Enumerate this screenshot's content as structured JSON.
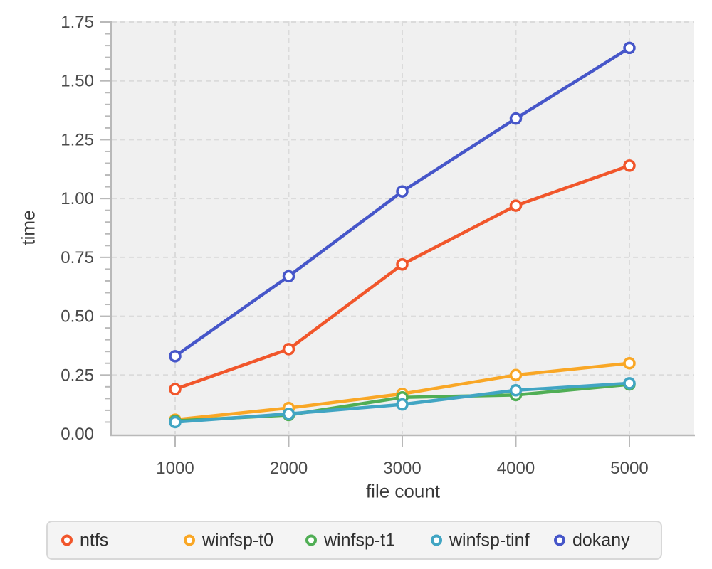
{
  "chart_data": {
    "type": "line",
    "title": "",
    "xlabel": "file count",
    "ylabel": "time",
    "x": [
      1000,
      2000,
      3000,
      4000,
      5000
    ],
    "x_tick_labels": [
      "1000",
      "2000",
      "3000",
      "4000",
      "5000"
    ],
    "y_tick_labels": [
      "0.00",
      "0.25",
      "0.50",
      "0.75",
      "1.00",
      "1.25",
      "1.50",
      "1.75"
    ],
    "ylim": [
      0,
      1.75
    ],
    "y_major_step": 0.25,
    "y_minor_step": 0.05,
    "grid": "dashed-major",
    "marker": "open-circle",
    "legend_position": "bottom",
    "series": [
      {
        "name": "ntfs",
        "color": "#F1562B",
        "values": [
          0.19,
          0.36,
          0.72,
          0.97,
          1.14
        ]
      },
      {
        "name": "winfsp-t0",
        "color": "#F9A726",
        "values": [
          0.06,
          0.11,
          0.17,
          0.25,
          0.3
        ]
      },
      {
        "name": "winfsp-t1",
        "color": "#50AE55",
        "values": [
          0.055,
          0.08,
          0.155,
          0.165,
          0.21
        ]
      },
      {
        "name": "winfsp-tinf",
        "color": "#41A5C3",
        "values": [
          0.05,
          0.085,
          0.125,
          0.185,
          0.215
        ]
      },
      {
        "name": "dokany",
        "color": "#4656C9",
        "values": [
          0.33,
          0.67,
          1.03,
          1.34,
          1.64
        ]
      }
    ]
  },
  "style_colors": {
    "plot_background": "#f0f0f0",
    "gridline": "#dbdbdb",
    "axis_line": "#b9b9b9",
    "tick_label": "#4a4a4a",
    "axis_title": "#3a3a3a",
    "legend_border": "#d8d8d8",
    "legend_background": "#f4f4f4",
    "legend_text": "#2f2f2f"
  }
}
